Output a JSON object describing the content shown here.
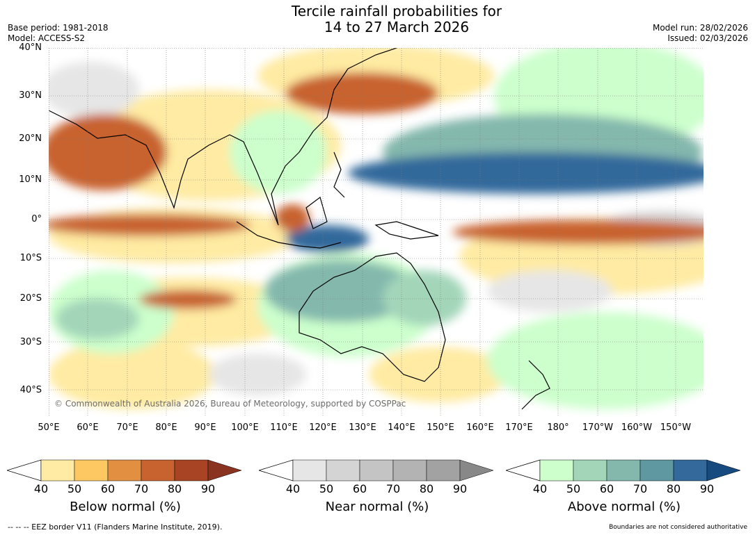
{
  "title": {
    "line1": "Tercile rainfall probabilities for",
    "line2": "14 to 27 March 2026"
  },
  "meta": {
    "base_period": "Base period: 1981-2018",
    "model": "Model: ACCESS-S2",
    "model_run": "Model run: 28/02/2026",
    "issued": "Issued: 02/03/2026"
  },
  "map": {
    "copyright": "© Commonwealth of Australia 2026, Bureau of Meteorology, supported by COSPPac",
    "lat_labels": [
      "40°N",
      "30°N",
      "20°N",
      "10°N",
      "0°",
      "10°S",
      "20°S",
      "30°S",
      "40°S"
    ],
    "lon_labels": [
      "50°E",
      "60°E",
      "70°E",
      "80°E",
      "90°E",
      "100°E",
      "110°E",
      "120°E",
      "130°E",
      "140°E",
      "150°E",
      "160°E",
      "170°E",
      "180°",
      "170°W",
      "160°W",
      "150°W"
    ]
  },
  "legends": [
    {
      "name": "below",
      "title": "Below normal (%)",
      "ticks": [
        "40",
        "50",
        "60",
        "70",
        "80",
        "90"
      ],
      "colors": [
        "#ffeba3",
        "#fdc861",
        "#e28f42",
        "#c8622f",
        "#a84423",
        "#8a3320"
      ]
    },
    {
      "name": "near",
      "title": "Near normal (%)",
      "ticks": [
        "40",
        "50",
        "60",
        "70",
        "80",
        "90"
      ],
      "colors": [
        "#e6e6e6",
        "#d4d4d4",
        "#c4c4c4",
        "#b3b3b3",
        "#a2a2a2",
        "#888888"
      ]
    },
    {
      "name": "above",
      "title": "Above normal (%)",
      "ticks": [
        "40",
        "50",
        "60",
        "70",
        "80",
        "90"
      ],
      "colors": [
        "#ccffcc",
        "#a3d6b9",
        "#84b8ad",
        "#5f98a0",
        "#33699b",
        "#174a7e"
      ]
    }
  ],
  "footer": {
    "left": "--  --  -- EEZ border V11 (Flanders Marine Institute, 2019).",
    "right": "Boundaries are not considered authoritative"
  }
}
